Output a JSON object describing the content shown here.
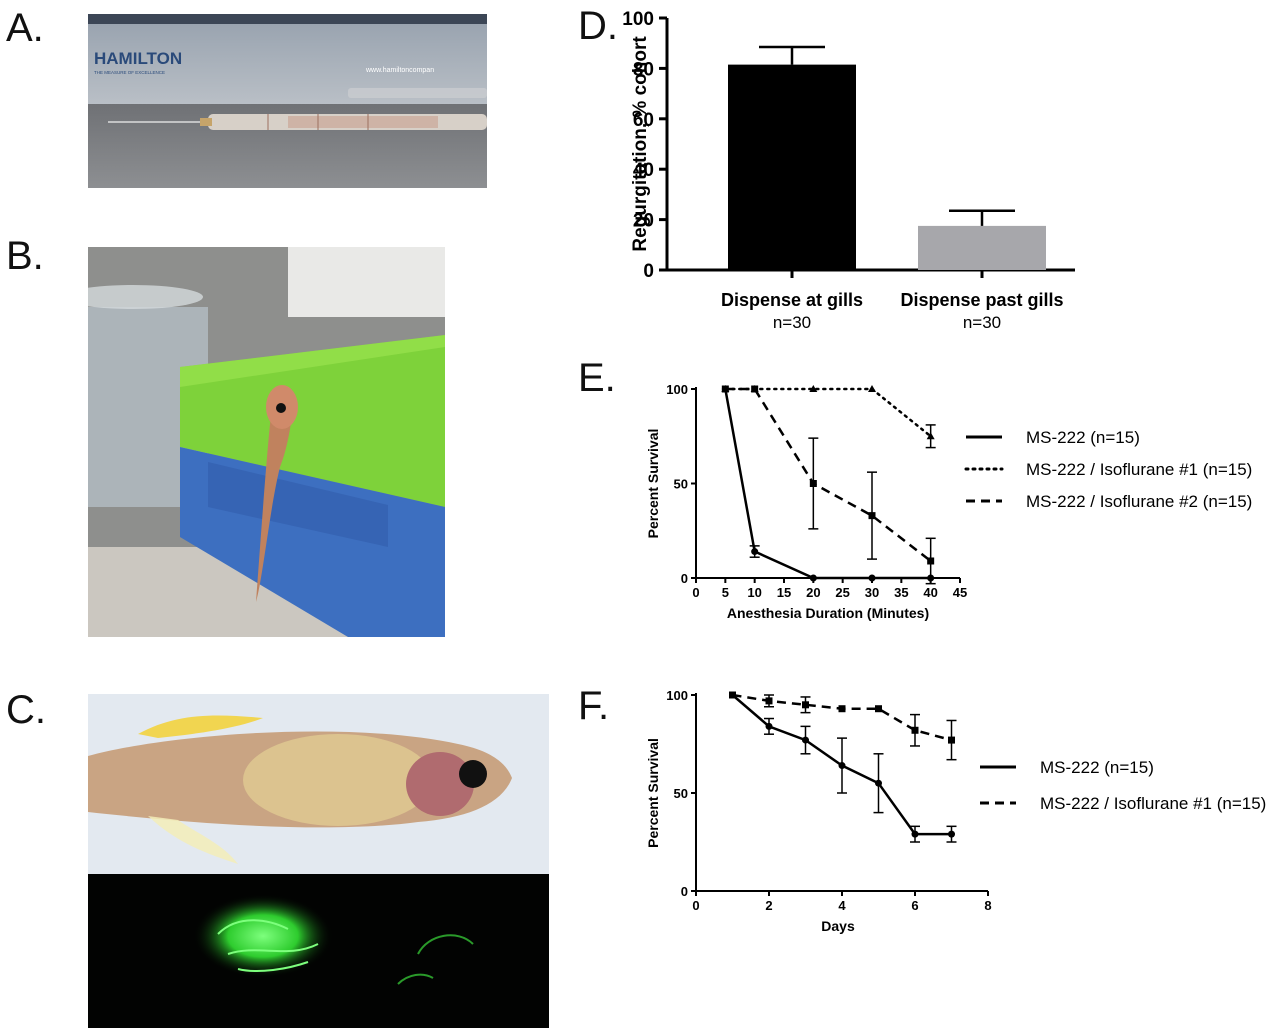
{
  "panels": {
    "a": "A.",
    "b": "B.",
    "c": "C.",
    "d": "D.",
    "e": "E.",
    "f": "F."
  },
  "photo_a": {
    "box_brand": "HAMILTON",
    "box_tagline": "THE MEASURE OF EXCELLENCE",
    "box_url": "www.hamiltoncompan"
  },
  "colors": {
    "sponge_green": "#7ed23a",
    "sponge_blue": "#3d6fc0",
    "fluorescence": "#3cff3c",
    "bar_black": "#000000",
    "bar_gray": "#a7a7ab"
  },
  "chart_data": [
    {
      "id": "D",
      "type": "bar",
      "categories": [
        "Dispense at gills",
        "Dispense past gills"
      ],
      "category_sublabels": [
        "n=30",
        "n=30"
      ],
      "values": [
        81.5,
        17.5
      ],
      "error": [
        7,
        6
      ],
      "bar_colors": [
        "#000000",
        "#a7a7ab"
      ],
      "xlabel": "",
      "ylabel": "Regurgitation, % cohort",
      "ylim": [
        0,
        100
      ],
      "yticks": [
        "0",
        "20",
        "40",
        "60",
        "80",
        "100"
      ]
    },
    {
      "id": "E",
      "type": "line",
      "xlabel": "Anesthesia Duration (Minutes)",
      "ylabel": "Percent Survival",
      "xlim": [
        0,
        45
      ],
      "ylim": [
        0,
        100
      ],
      "xticks": [
        "0",
        "5",
        "10",
        "15",
        "20",
        "25",
        "30",
        "35",
        "40",
        "45"
      ],
      "yticks": [
        "0",
        "50",
        "100"
      ],
      "legend_position": "right",
      "series": [
        {
          "name": "MS-222 (n=15)",
          "dash": "solid",
          "marker": "circle",
          "x": [
            5,
            10,
            20,
            30,
            40
          ],
          "y": [
            100,
            14,
            0,
            0,
            0
          ],
          "err": [
            0,
            3,
            0,
            0,
            0
          ]
        },
        {
          "name": "MS-222 / Isoflurane #1 (n=15)",
          "dash": "dotted",
          "marker": "triangle",
          "x": [
            5,
            10,
            20,
            30,
            40
          ],
          "y": [
            100,
            100,
            100,
            100,
            75
          ],
          "err": [
            0,
            0,
            0,
            0,
            6
          ]
        },
        {
          "name": "MS-222 / Isoflurane #2 (n=15)",
          "dash": "dashed",
          "marker": "square",
          "x": [
            5,
            10,
            20,
            30,
            40
          ],
          "y": [
            100,
            100,
            50,
            33,
            9
          ],
          "err": [
            0,
            0,
            24,
            23,
            12
          ]
        }
      ]
    },
    {
      "id": "F",
      "type": "line",
      "xlabel": "Days",
      "ylabel": "Percent Survival",
      "xlim": [
        0,
        8
      ],
      "ylim": [
        0,
        100
      ],
      "xticks": [
        "0",
        "2",
        "4",
        "6",
        "8"
      ],
      "yticks": [
        "0",
        "50",
        "100"
      ],
      "legend_position": "right",
      "series": [
        {
          "name": "MS-222 (n=15)",
          "dash": "solid",
          "marker": "circle",
          "x": [
            1,
            2,
            3,
            4,
            5,
            6,
            7
          ],
          "y": [
            100,
            84,
            77,
            64,
            55,
            29,
            29
          ],
          "err": [
            0,
            4,
            7,
            14,
            15,
            4,
            4
          ]
        },
        {
          "name": "MS-222 / Isoflurane #1 (n=15)",
          "dash": "dashed",
          "marker": "square",
          "x": [
            1,
            2,
            3,
            4,
            5,
            6,
            7
          ],
          "y": [
            100,
            97,
            95,
            93,
            93,
            82,
            77
          ],
          "err": [
            0,
            3,
            4,
            0,
            0,
            8,
            10
          ]
        }
      ]
    }
  ]
}
